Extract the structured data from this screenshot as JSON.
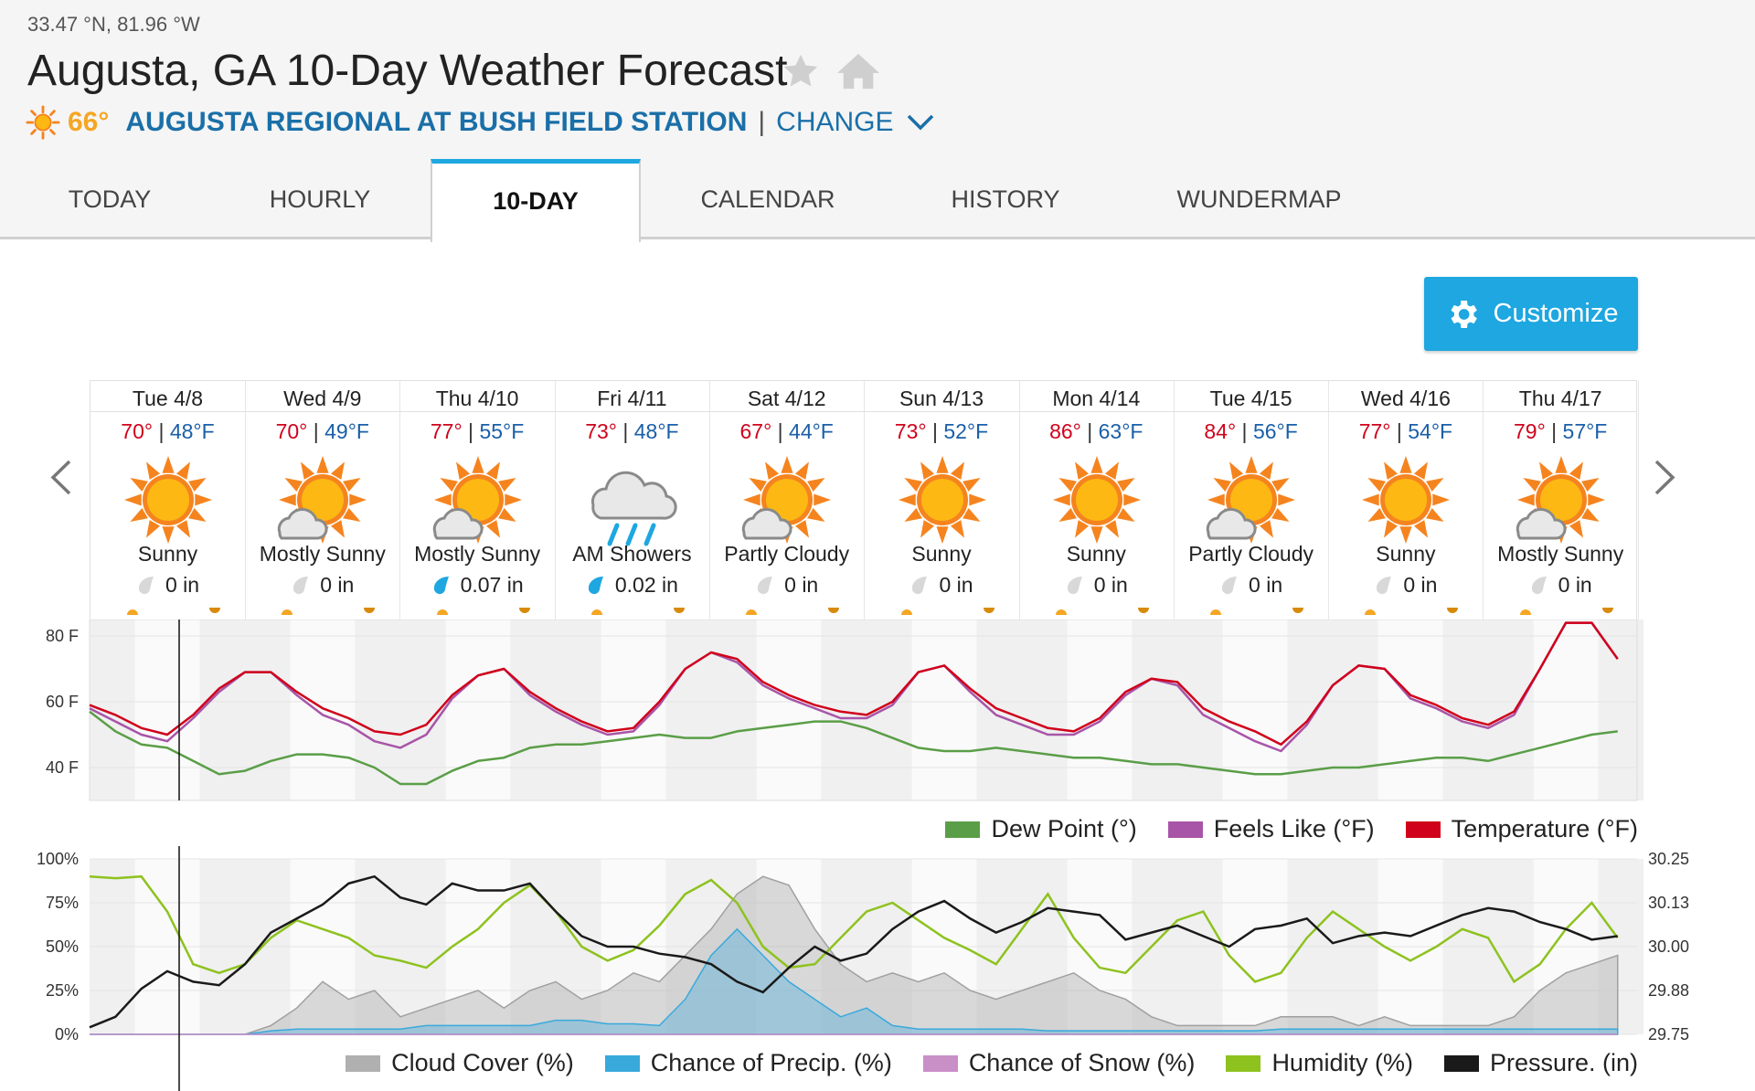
{
  "header": {
    "coords": "33.47 °N, 81.96 °W",
    "title": "Augusta, GA 10-Day Weather Forecast",
    "current_temp": "66°",
    "station": "AUGUSTA REGIONAL AT BUSH FIELD STATION",
    "separator": "|",
    "change": "CHANGE"
  },
  "tabs": [
    {
      "label": "TODAY"
    },
    {
      "label": "HOURLY"
    },
    {
      "label": "10-DAY"
    },
    {
      "label": "CALENDAR"
    },
    {
      "label": "HISTORY"
    },
    {
      "label": "WUNDERMAP"
    }
  ],
  "customize_label": "Customize",
  "days": [
    {
      "date": "Tue 4/8",
      "hi": "70°",
      "lo": "48°F",
      "icon": "sunny",
      "cond": "Sunny",
      "precip": "0 in",
      "rain": false
    },
    {
      "date": "Wed 4/9",
      "hi": "70°",
      "lo": "49°F",
      "icon": "mostly-sunny",
      "cond": "Mostly Sunny",
      "precip": "0 in",
      "rain": false
    },
    {
      "date": "Thu 4/10",
      "hi": "77°",
      "lo": "55°F",
      "icon": "mostly-sunny",
      "cond": "Mostly Sunny",
      "precip": "0.07 in",
      "rain": true
    },
    {
      "date": "Fri 4/11",
      "hi": "73°",
      "lo": "48°F",
      "icon": "showers",
      "cond": "AM Showers",
      "precip": "0.02 in",
      "rain": true
    },
    {
      "date": "Sat 4/12",
      "hi": "67°",
      "lo": "44°F",
      "icon": "partly-cloudy",
      "cond": "Partly Cloudy",
      "precip": "0 in",
      "rain": false
    },
    {
      "date": "Sun 4/13",
      "hi": "73°",
      "lo": "52°F",
      "icon": "sunny",
      "cond": "Sunny",
      "precip": "0 in",
      "rain": false
    },
    {
      "date": "Mon 4/14",
      "hi": "86°",
      "lo": "63°F",
      "icon": "sunny",
      "cond": "Sunny",
      "precip": "0 in",
      "rain": false
    },
    {
      "date": "Tue 4/15",
      "hi": "84°",
      "lo": "56°F",
      "icon": "partly-cloudy",
      "cond": "Partly Cloudy",
      "precip": "0 in",
      "rain": false
    },
    {
      "date": "Wed 4/16",
      "hi": "77°",
      "lo": "54°F",
      "icon": "sunny",
      "cond": "Sunny",
      "precip": "0 in",
      "rain": false
    },
    {
      "date": "Thu 4/17",
      "hi": "79°",
      "lo": "57°F",
      "icon": "mostly-sunny",
      "cond": "Mostly Sunny",
      "precip": "0 in",
      "rain": false
    }
  ],
  "icons": {
    "favorite": "star-icon",
    "home": "home-icon",
    "settings": "gear-icon",
    "prev": "chevron-left-icon",
    "next": "chevron-right-icon"
  },
  "colors": {
    "accent": "#1ea7e0",
    "temperature": "#d0021b",
    "feels_like": "#a855a8",
    "dew_point": "#5a9e47",
    "humidity": "#8ec21f",
    "pressure": "#1a1a1a",
    "cloud": "#b0b0b0",
    "precip": "#39a9dc",
    "snow": "#c98fc7"
  },
  "chart_data": [
    {
      "type": "line",
      "x": [
        0,
        4,
        8,
        12,
        16,
        20,
        24,
        28,
        32,
        36,
        40,
        44,
        48,
        52,
        56,
        60,
        64,
        68,
        72,
        76,
        80,
        84,
        88,
        92,
        96,
        100,
        104,
        108,
        112,
        116,
        120,
        124,
        128,
        132,
        136,
        140,
        144,
        148,
        152,
        156,
        160,
        164,
        168,
        172,
        176,
        180,
        184,
        188,
        192,
        196,
        200,
        204,
        208,
        212,
        216,
        220,
        224,
        228,
        232,
        236
      ],
      "series": [
        {
          "name": "Temperature (°F)",
          "values": [
            59,
            56,
            52,
            50,
            56,
            64,
            69,
            69,
            63,
            58,
            55,
            51,
            50,
            53,
            62,
            68,
            70,
            63,
            58,
            54,
            51,
            52,
            60,
            70,
            75,
            73,
            66,
            62,
            59,
            57,
            56,
            60,
            69,
            71,
            64,
            58,
            55,
            52,
            51,
            55,
            63,
            67,
            66,
            58,
            54,
            51,
            47,
            54,
            65,
            71,
            70,
            62,
            59,
            55,
            53,
            57,
            70,
            84,
            84,
            73
          ]
        },
        {
          "name": "Feels Like (°F)",
          "values": [
            58,
            54,
            50,
            48,
            55,
            63,
            69,
            69,
            62,
            56,
            53,
            48,
            46,
            50,
            61,
            68,
            70,
            62,
            57,
            53,
            50,
            51,
            59,
            70,
            75,
            72,
            65,
            61,
            58,
            55,
            55,
            59,
            69,
            71,
            63,
            56,
            53,
            50,
            50,
            54,
            62,
            67,
            65,
            56,
            52,
            48,
            45,
            53,
            65,
            71,
            70,
            61,
            58,
            54,
            52,
            56,
            70,
            84,
            84,
            73
          ]
        },
        {
          "name": "Dew Point (°)",
          "values": [
            57,
            51,
            47,
            46,
            42,
            38,
            39,
            42,
            44,
            44,
            43,
            40,
            35,
            35,
            39,
            42,
            43,
            46,
            47,
            47,
            48,
            49,
            50,
            49,
            49,
            51,
            52,
            53,
            54,
            54,
            52,
            49,
            46,
            45,
            45,
            46,
            45,
            44,
            43,
            43,
            42,
            41,
            41,
            40,
            39,
            38,
            38,
            39,
            40,
            40,
            41,
            42,
            43,
            43,
            42,
            44,
            46,
            48,
            50,
            51
          ]
        }
      ],
      "ylabel": "",
      "yticks": [
        "40 F",
        "60 F",
        "80 F"
      ],
      "ylim": [
        30,
        85
      ],
      "legend": "bottom-right"
    },
    {
      "type": "area",
      "x": [
        0,
        4,
        8,
        12,
        16,
        20,
        24,
        28,
        32,
        36,
        40,
        44,
        48,
        52,
        56,
        60,
        64,
        68,
        72,
        76,
        80,
        84,
        88,
        92,
        96,
        100,
        104,
        108,
        112,
        116,
        120,
        124,
        128,
        132,
        136,
        140,
        144,
        148,
        152,
        156,
        160,
        164,
        168,
        172,
        176,
        180,
        184,
        188,
        192,
        196,
        200,
        204,
        208,
        212,
        216,
        220,
        224,
        228,
        232,
        236
      ],
      "series": [
        {
          "name": "Cloud Cover (%)",
          "axis": "left",
          "values": [
            0,
            0,
            0,
            0,
            0,
            0,
            0,
            5,
            15,
            30,
            20,
            25,
            10,
            15,
            20,
            25,
            15,
            25,
            30,
            20,
            25,
            35,
            30,
            45,
            60,
            80,
            90,
            85,
            60,
            40,
            30,
            35,
            30,
            35,
            25,
            20,
            25,
            30,
            35,
            25,
            20,
            10,
            5,
            5,
            5,
            5,
            10,
            10,
            10,
            5,
            10,
            5,
            5,
            5,
            5,
            10,
            25,
            35,
            40,
            45
          ]
        },
        {
          "name": "Chance of Precip. (%)",
          "axis": "left",
          "values": [
            0,
            0,
            0,
            0,
            0,
            0,
            0,
            2,
            3,
            3,
            3,
            3,
            3,
            5,
            5,
            5,
            5,
            5,
            8,
            8,
            6,
            6,
            5,
            20,
            45,
            60,
            45,
            30,
            20,
            10,
            15,
            5,
            3,
            3,
            3,
            3,
            3,
            2,
            2,
            2,
            2,
            2,
            2,
            2,
            2,
            2,
            3,
            3,
            3,
            3,
            3,
            3,
            3,
            3,
            3,
            3,
            3,
            3,
            3,
            3
          ]
        },
        {
          "name": "Chance of Snow (%)",
          "axis": "left",
          "values": [
            0,
            0,
            0,
            0,
            0,
            0,
            0,
            0,
            0,
            0,
            0,
            0,
            0,
            0,
            0,
            0,
            0,
            0,
            0,
            0,
            0,
            0,
            0,
            0,
            0,
            0,
            0,
            0,
            0,
            0,
            0,
            0,
            0,
            0,
            0,
            0,
            0,
            0,
            0,
            0,
            0,
            0,
            0,
            0,
            0,
            0,
            0,
            0,
            0,
            0,
            0,
            0,
            0,
            0,
            0,
            0,
            0,
            0,
            0,
            0
          ]
        },
        {
          "name": "Humidity (%)",
          "axis": "left",
          "values": [
            90,
            89,
            90,
            70,
            40,
            35,
            40,
            55,
            65,
            60,
            55,
            45,
            42,
            38,
            50,
            60,
            75,
            85,
            70,
            50,
            42,
            48,
            62,
            80,
            88,
            75,
            50,
            38,
            40,
            55,
            70,
            75,
            65,
            55,
            48,
            40,
            60,
            80,
            55,
            38,
            35,
            50,
            65,
            70,
            45,
            30,
            35,
            55,
            70,
            60,
            50,
            42,
            50,
            60,
            55,
            30,
            40,
            60,
            75,
            55
          ]
        },
        {
          "name": "Pressure. (in)",
          "axis": "right",
          "values": [
            29.77,
            29.8,
            29.88,
            29.93,
            29.9,
            29.89,
            29.95,
            30.04,
            30.08,
            30.12,
            30.18,
            30.2,
            30.14,
            30.12,
            30.18,
            30.16,
            30.16,
            30.18,
            30.1,
            30.03,
            30.0,
            30.0,
            29.98,
            29.97,
            29.95,
            29.9,
            29.87,
            29.94,
            30.0,
            29.96,
            29.98,
            30.05,
            30.1,
            30.13,
            30.08,
            30.04,
            30.07,
            30.11,
            30.1,
            30.09,
            30.02,
            30.04,
            30.06,
            30.03,
            30.0,
            30.05,
            30.06,
            30.08,
            30.01,
            30.03,
            30.04,
            30.03,
            30.06,
            30.09,
            30.11,
            30.1,
            30.07,
            30.05,
            30.02,
            30.03
          ]
        }
      ],
      "yticks_left": [
        "0%",
        "25%",
        "50%",
        "75%",
        "100%"
      ],
      "yticks_right": [
        "29.75",
        "29.88",
        "30.00",
        "30.13",
        "30.25"
      ],
      "ylim_left": [
        0,
        100
      ],
      "ylim_right": [
        29.75,
        30.25
      ],
      "legend": "bottom-right"
    }
  ]
}
